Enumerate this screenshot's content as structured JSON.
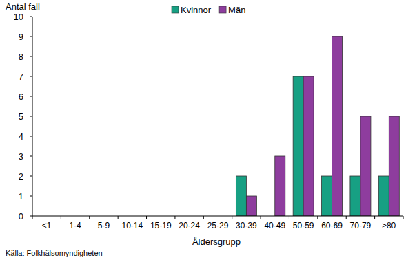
{
  "chart_data": {
    "type": "bar",
    "y_label": "Antal fall",
    "x_label": "Åldersgrupp",
    "annotations": [
      "Källa: Folkhälsomyndigheten"
    ],
    "categories": [
      "<1",
      "1-4",
      "5-9",
      "10-14",
      "15-19",
      "20-24",
      "25-29",
      "30-39",
      "40-49",
      "50-59",
      "60-69",
      "70-79",
      "≥80"
    ],
    "series": [
      {
        "name": "Kvinnor",
        "color": "#17a083",
        "values": [
          0,
          0,
          0,
          0,
          0,
          0,
          0,
          2,
          0,
          7,
          2,
          2,
          2
        ]
      },
      {
        "name": "Män",
        "color": "#8e3d9e",
        "values": [
          0,
          0,
          0,
          0,
          0,
          0,
          0,
          1,
          3,
          7,
          9,
          5,
          5
        ]
      }
    ],
    "ylim": [
      0,
      10
    ],
    "yticks": [
      0,
      1,
      2,
      3,
      4,
      5,
      6,
      7,
      8,
      9,
      10
    ],
    "grid": false,
    "legend": "top"
  }
}
